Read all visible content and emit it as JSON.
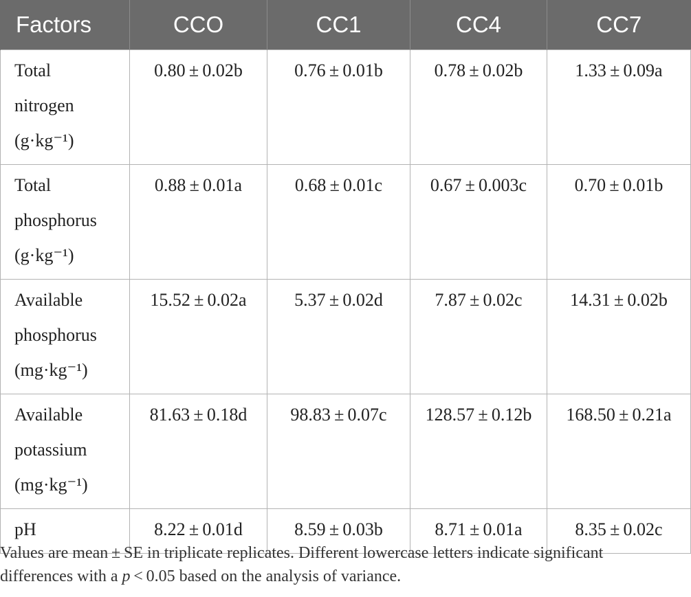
{
  "table": {
    "headers": [
      "Factors",
      "CCO",
      "CC1",
      "CC4",
      "CC7"
    ],
    "rows": [
      {
        "factor_lines": [
          "Total",
          "nitrogen",
          "(g·kg⁻¹)"
        ],
        "values": [
          "0.80 ± 0.02b",
          "0.76 ± 0.01b",
          "0.78 ± 0.02b",
          "1.33 ± 0.09a"
        ]
      },
      {
        "factor_lines": [
          "Total",
          "phosphorus",
          "(g·kg⁻¹)"
        ],
        "values": [
          "0.88 ± 0.01a",
          "0.68 ± 0.01c",
          "0.67 ± 0.003c",
          "0.70 ± 0.01b"
        ]
      },
      {
        "factor_lines": [
          "Available",
          "phosphorus",
          "(mg·kg⁻¹)"
        ],
        "values": [
          "15.52 ± 0.02a",
          "5.37 ± 0.02d",
          "7.87 ± 0.02c",
          "14.31 ± 0.02b"
        ]
      },
      {
        "factor_lines": [
          "Available",
          "potassium",
          "(mg·kg⁻¹)"
        ],
        "values": [
          "81.63 ± 0.18d",
          "98.83 ± 0.07c",
          "128.57 ± 0.12b",
          "168.50 ± 0.21a"
        ]
      },
      {
        "factor_lines": [
          "pH"
        ],
        "values": [
          "8.22 ± 0.01d",
          "8.59 ± 0.03b",
          "8.71 ± 0.01a",
          "8.35 ± 0.02c"
        ]
      }
    ]
  },
  "footnote": {
    "line1": "Values are mean ± SE in triplicate replicates. Different lowercase letters indicate significant",
    "line2_before": "differences with a ",
    "line2_p": "p",
    "line2_after": " < 0.05 based on the analysis of variance."
  },
  "colors": {
    "header_bg": "#6b6b6b",
    "header_text": "#ffffff",
    "border": "#b3b3b3",
    "text": "#222222"
  }
}
